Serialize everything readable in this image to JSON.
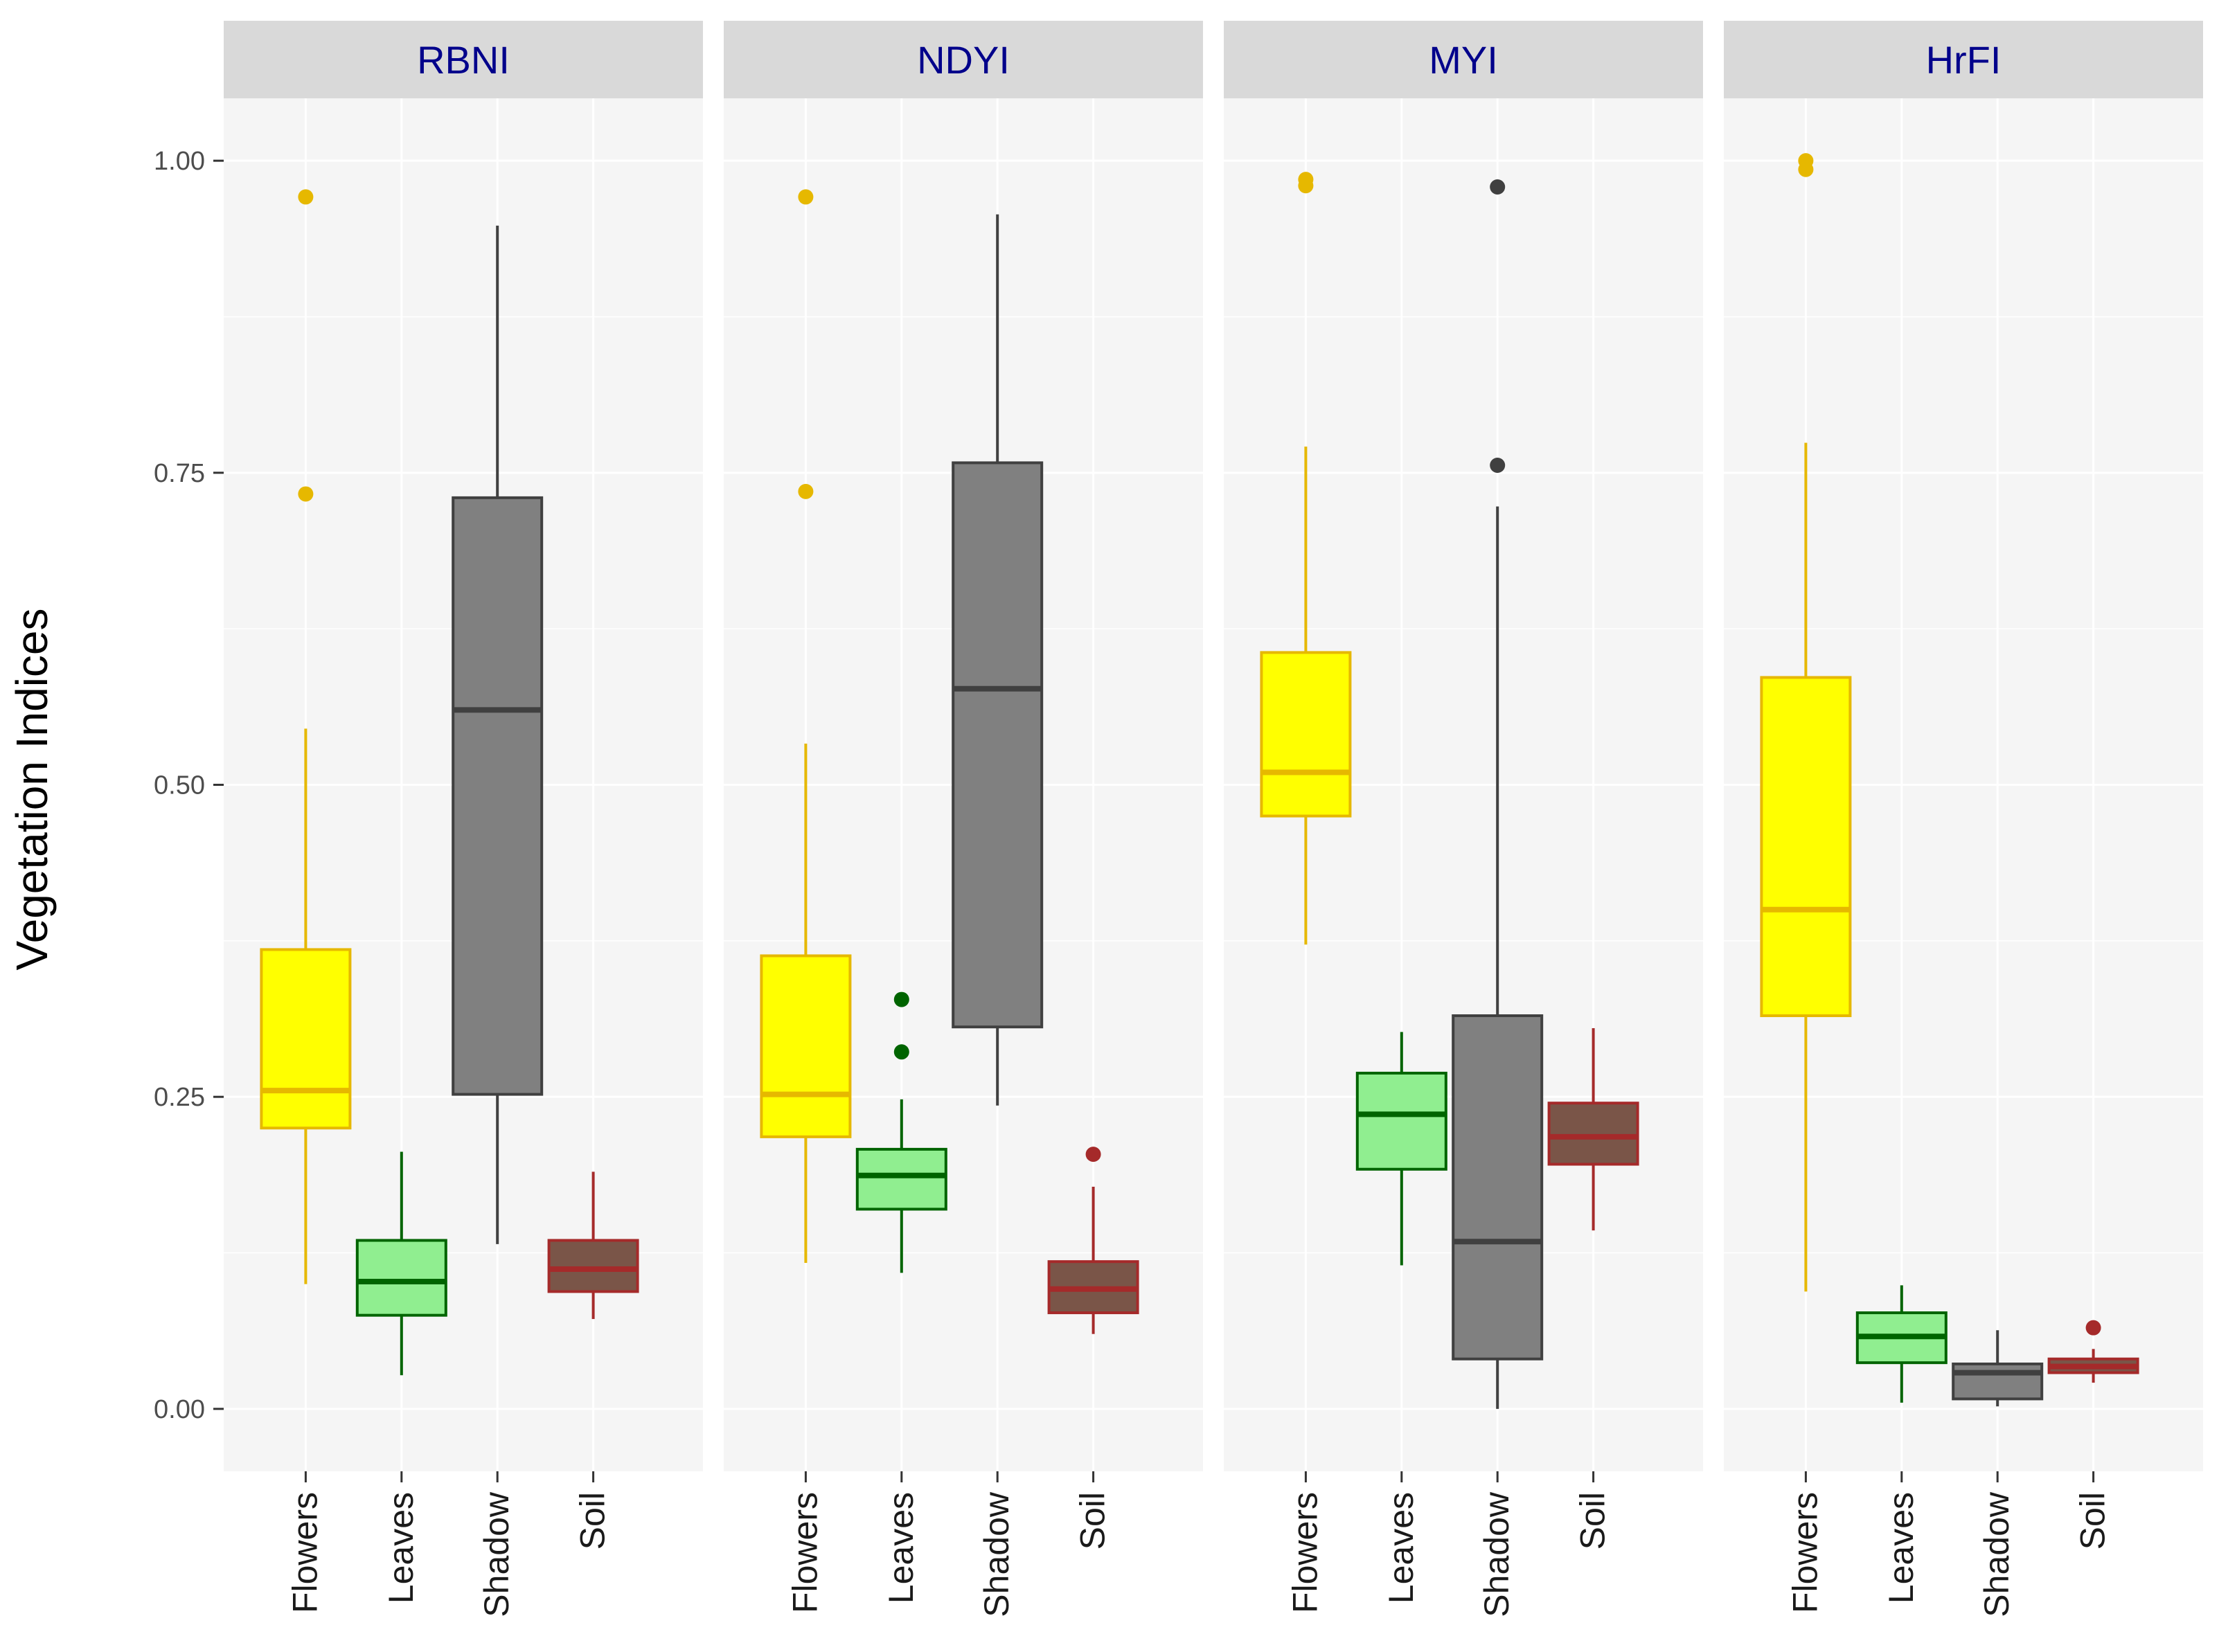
{
  "chart_data": {
    "type": "boxplot",
    "ylabel": "Vegetation Indices",
    "ylim": [
      -0.05,
      1.05
    ],
    "y_ticks": [
      0.0,
      0.25,
      0.5,
      0.75,
      1.0
    ],
    "y_tick_labels": [
      "0.00",
      "0.25",
      "0.50",
      "0.75",
      "1.00"
    ],
    "categories": [
      "Flowers",
      "Leaves",
      "Shadow",
      "Soil"
    ],
    "grid": true,
    "legend": "none",
    "colors": {
      "Flowers": {
        "fill": "#FFFF00",
        "line": "#E6B800"
      },
      "Leaves": {
        "fill": "#90EE90",
        "line": "#006400"
      },
      "Shadow": {
        "fill": "#808080",
        "line": "#404040"
      },
      "Soil": {
        "fill": "#7A5548",
        "line": "#A52A2A"
      }
    },
    "panels": [
      {
        "title": "RBNI",
        "boxes": [
          {
            "category": "Flowers",
            "whisker_low": 0.1,
            "q1": 0.225,
            "median": 0.255,
            "q3": 0.368,
            "whisker_high": 0.545,
            "outliers": [
              0.733,
              0.971
            ]
          },
          {
            "category": "Leaves",
            "whisker_low": 0.027,
            "q1": 0.075,
            "median": 0.102,
            "q3": 0.135,
            "whisker_high": 0.206,
            "outliers": []
          },
          {
            "category": "Shadow",
            "whisker_low": 0.132,
            "q1": 0.252,
            "median": 0.56,
            "q3": 0.73,
            "whisker_high": 0.948,
            "outliers": []
          },
          {
            "category": "Soil",
            "whisker_low": 0.072,
            "q1": 0.094,
            "median": 0.112,
            "q3": 0.135,
            "whisker_high": 0.19,
            "outliers": []
          }
        ]
      },
      {
        "title": "NDYI",
        "boxes": [
          {
            "category": "Flowers",
            "whisker_low": 0.117,
            "q1": 0.218,
            "median": 0.252,
            "q3": 0.363,
            "whisker_high": 0.533,
            "outliers": [
              0.735,
              0.971
            ]
          },
          {
            "category": "Leaves",
            "whisker_low": 0.109,
            "q1": 0.16,
            "median": 0.187,
            "q3": 0.208,
            "whisker_high": 0.248,
            "outliers": [
              0.286,
              0.328
            ]
          },
          {
            "category": "Shadow",
            "whisker_low": 0.243,
            "q1": 0.306,
            "median": 0.577,
            "q3": 0.758,
            "whisker_high": 0.957,
            "outliers": []
          },
          {
            "category": "Soil",
            "whisker_low": 0.06,
            "q1": 0.077,
            "median": 0.096,
            "q3": 0.118,
            "whisker_high": 0.178,
            "outliers": [
              0.204
            ]
          }
        ]
      },
      {
        "title": "MYI",
        "boxes": [
          {
            "category": "Flowers",
            "whisker_low": 0.372,
            "q1": 0.475,
            "median": 0.51,
            "q3": 0.606,
            "whisker_high": 0.771,
            "outliers": [
              0.98,
              0.985
            ]
          },
          {
            "category": "Leaves",
            "whisker_low": 0.115,
            "q1": 0.192,
            "median": 0.236,
            "q3": 0.269,
            "whisker_high": 0.302,
            "outliers": []
          },
          {
            "category": "Shadow",
            "whisker_low": 0.0,
            "q1": 0.04,
            "median": 0.134,
            "q3": 0.315,
            "whisker_high": 0.723,
            "outliers": [
              0.756,
              0.979
            ]
          },
          {
            "category": "Soil",
            "whisker_low": 0.143,
            "q1": 0.196,
            "median": 0.218,
            "q3": 0.245,
            "whisker_high": 0.305,
            "outliers": []
          }
        ]
      },
      {
        "title": "HrFI",
        "boxes": [
          {
            "category": "Flowers",
            "whisker_low": 0.094,
            "q1": 0.315,
            "median": 0.4,
            "q3": 0.586,
            "whisker_high": 0.774,
            "outliers": [
              0.993,
              1.0
            ]
          },
          {
            "category": "Leaves",
            "whisker_low": 0.005,
            "q1": 0.037,
            "median": 0.058,
            "q3": 0.077,
            "whisker_high": 0.099,
            "outliers": []
          },
          {
            "category": "Shadow",
            "whisker_low": 0.002,
            "q1": 0.008,
            "median": 0.029,
            "q3": 0.036,
            "whisker_high": 0.063,
            "outliers": []
          },
          {
            "category": "Soil",
            "whisker_low": 0.021,
            "q1": 0.029,
            "median": 0.034,
            "q3": 0.04,
            "whisker_high": 0.048,
            "outliers": [
              0.065
            ]
          }
        ]
      }
    ]
  }
}
